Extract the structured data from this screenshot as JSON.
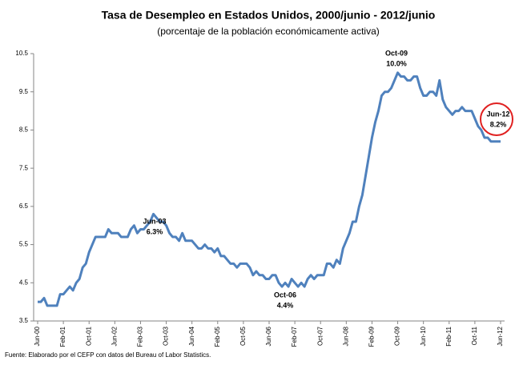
{
  "chart_data": {
    "type": "line",
    "title": "Tasa de Desempleo en Estados Unidos, 2000/junio - 2012/junio",
    "subtitle": "(porcentaje de la población económicamente activa)",
    "source": "Fuente: Elaborado por el CEFP con datos del Bureau of Labor Statistics.",
    "categories": [
      "Jun-00",
      null,
      null,
      null,
      null,
      null,
      null,
      null,
      "Feb-01",
      null,
      null,
      null,
      null,
      null,
      null,
      null,
      "Oct-01",
      null,
      null,
      null,
      null,
      null,
      null,
      null,
      "Jun-02",
      null,
      null,
      null,
      null,
      null,
      null,
      null,
      "Feb-03",
      null,
      null,
      null,
      null,
      null,
      null,
      null,
      "Oct-03",
      null,
      null,
      null,
      null,
      null,
      null,
      null,
      "Jun-04",
      null,
      null,
      null,
      null,
      null,
      null,
      null,
      "Feb-05",
      null,
      null,
      null,
      null,
      null,
      null,
      null,
      "Oct-05",
      null,
      null,
      null,
      null,
      null,
      null,
      null,
      "Jun-06",
      null,
      null,
      null,
      null,
      null,
      null,
      null,
      "Feb-07",
      null,
      null,
      null,
      null,
      null,
      null,
      null,
      "Oct-07",
      null,
      null,
      null,
      null,
      null,
      null,
      null,
      "Jun-08",
      null,
      null,
      null,
      null,
      null,
      null,
      null,
      "Feb-09",
      null,
      null,
      null,
      null,
      null,
      null,
      null,
      "Oct-09",
      null,
      null,
      null,
      null,
      null,
      null,
      null,
      "Jun-10",
      null,
      null,
      null,
      null,
      null,
      null,
      null,
      "Feb-11",
      null,
      null,
      null,
      null,
      null,
      null,
      null,
      "Oct-11",
      null,
      null,
      null,
      null,
      null,
      null,
      null,
      "Jun-12"
    ],
    "values": [
      4.0,
      4.0,
      4.1,
      3.9,
      3.9,
      3.9,
      3.9,
      4.2,
      4.2,
      4.3,
      4.4,
      4.3,
      4.5,
      4.6,
      4.9,
      5.0,
      5.3,
      5.5,
      5.7,
      5.7,
      5.7,
      5.7,
      5.9,
      5.8,
      5.8,
      5.8,
      5.7,
      5.7,
      5.7,
      5.9,
      6.0,
      5.8,
      5.9,
      5.9,
      6.0,
      6.1,
      6.3,
      6.2,
      6.1,
      6.1,
      6.0,
      5.8,
      5.7,
      5.7,
      5.6,
      5.8,
      5.6,
      5.6,
      5.6,
      5.5,
      5.4,
      5.4,
      5.5,
      5.4,
      5.4,
      5.3,
      5.4,
      5.2,
      5.2,
      5.1,
      5.0,
      5.0,
      4.9,
      5.0,
      5.0,
      5.0,
      4.9,
      4.7,
      4.8,
      4.7,
      4.7,
      4.6,
      4.6,
      4.7,
      4.7,
      4.5,
      4.4,
      4.5,
      4.4,
      4.6,
      4.5,
      4.4,
      4.5,
      4.4,
      4.6,
      4.7,
      4.6,
      4.7,
      4.7,
      4.7,
      5.0,
      5.0,
      4.9,
      5.1,
      5.0,
      5.4,
      5.6,
      5.8,
      6.1,
      6.1,
      6.5,
      6.8,
      7.3,
      7.8,
      8.3,
      8.7,
      9.0,
      9.4,
      9.5,
      9.5,
      9.6,
      9.8,
      10.0,
      9.9,
      9.9,
      9.8,
      9.8,
      9.9,
      9.9,
      9.6,
      9.4,
      9.4,
      9.5,
      9.5,
      9.4,
      9.8,
      9.3,
      9.1,
      9.0,
      8.9,
      9.0,
      9.0,
      9.1,
      9.0,
      9.0,
      9.0,
      8.8,
      8.6,
      8.5,
      8.3,
      8.3,
      8.2,
      8.2,
      8.2,
      8.2
    ],
    "color": "#4f81bd",
    "ylim": [
      3.5,
      10.5
    ],
    "yticks": [
      3.5,
      4.5,
      5.5,
      6.5,
      7.5,
      8.5,
      9.5,
      10.5
    ],
    "grid": false,
    "annotations": [
      {
        "text": "Jun-03",
        "value_label": "6.3%"
      },
      {
        "text": "Oct-06",
        "value_label": "4.4%"
      },
      {
        "text": "Oct-09",
        "value_label": "10.0%"
      },
      {
        "text": "Jun-12",
        "value_label": "8.2%"
      }
    ]
  }
}
